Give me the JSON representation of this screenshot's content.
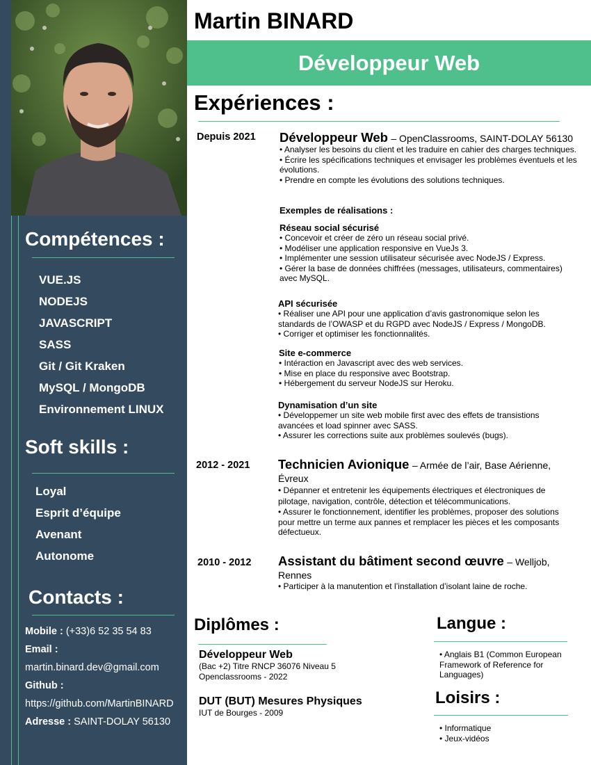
{
  "name": "Martin BINARD",
  "job_title": "Développeur Web",
  "sidebar": {
    "competences_title": "Compétences :",
    "competences": [
      "VUE.JS",
      "NODEJS",
      "JAVASCRIPT",
      "SASS",
      "Git / Git Kraken",
      "MySQL / MongoDB",
      "Environnement LINUX"
    ],
    "softskills_title": "Soft skills :",
    "softskills": [
      "Loyal",
      "Esprit d’équipe",
      "Avenant",
      "Autonome"
    ],
    "contacts_title": "Contacts :",
    "contacts": {
      "mobile_label": "Mobile :",
      "mobile": "(+33)6 52 35 54 83",
      "email_label": "Email :",
      "email": "martin.binard.dev@gmail.com",
      "github_label": "Github :",
      "github": "https://github.com/MartinBINARD",
      "address_label": "Adresse :",
      "address": "SAINT-DOLAY 56130"
    }
  },
  "experiences": {
    "title": "Expériences :",
    "job1": {
      "period": "Depuis 2021",
      "title": "Développeur Web",
      "company": "– OpenClassrooms, SAINT-DOLAY 56130",
      "bullets": [
        "• Analyser les besoins du client et les traduire en cahier des charges techniques.",
        "• Écrire les spécifications techniques et envisager les problèmes éventuels et les évolutions.",
        "• Prendre en compte les évolutions des solutions techniques."
      ],
      "examples_title": "Exemples de réalisations :",
      "projects": [
        {
          "title": "Réseau social sécurisé",
          "bullets": [
            "• Concevoir et créer de zéro un réseau social privé.",
            "• Modéliser une application responsive en VueJs 3.",
            "• Implémenter une session utilisateur sécurisée avec NodeJS / Express.",
            "• Gérer la base de données chiffrées (messages, utilisateurs, commentaires) avec MySQL."
          ]
        },
        {
          "title": "API sécurisée",
          "bullets": [
            "• Réaliser une API pour une application d’avis gastronomique selon les standards de l’OWASP et du RGPD avec NodeJS / Express / MongoDB.",
            "• Corriger et optimiser les fonctionnalités."
          ]
        },
        {
          "title": "Site e-commerce",
          "bullets": [
            "• Intéraction en Javascript avec des web services.",
            "• Mise en place du responsive avec Bootstrap.",
            "• Hébergement du serveur NodeJS sur Heroku."
          ]
        },
        {
          "title": "Dynamisation d’un site",
          "bullets": [
            "• Développemer un site web mobile first avec des effets de transistions avancées et load spinner avec SASS.",
            "• Assurer les corrections suite aux problèmes soulevés (bugs)."
          ]
        }
      ]
    },
    "job2": {
      "period": "2012 - 2021",
      "title": "Technicien Avionique",
      "company": "– Armée de l’air, Base Aérienne, Évreux",
      "bullets": [
        "• Dépanner et entretenir les équipements électriques et électroniques de pilotage, navigation, contrôle, détection et télécommunications.",
        "• Assurer le fonctionnement, identifier les problèmes, proposer des solutions pour mettre un terme aux pannes et remplacer les pièces et les composants défectueux."
      ]
    },
    "job3": {
      "period": "2010 - 2012",
      "title": "Assistant du bâtiment second œuvre",
      "company": "– Welljob, Rennes",
      "bullets": [
        "• Participer à la manutention et l’installation d’isolant laine de roche."
      ]
    }
  },
  "diplomes": {
    "title": "Diplômes :",
    "d1": {
      "title": "Développeur Web",
      "line1": "(Bac +2) Titre RNCP 36076 Niveau 5",
      "line2": "Openclassrooms - 2022"
    },
    "d2": {
      "title": "DUT (BUT) Mesures Physiques",
      "line1": "IUT de Bourges - 2009"
    }
  },
  "langue": {
    "title": "Langue :",
    "items": [
      "• Anglais B1 (Common European Framework of Reference for Languages)"
    ]
  },
  "loisirs": {
    "title": "Loisirs :",
    "items": [
      "• Informatique",
      "• Jeux-vidéos"
    ]
  },
  "colors": {
    "sidebar": "#344a5f",
    "accent": "#4fbf8c"
  },
  "icons": [
    "profile-photo"
  ]
}
